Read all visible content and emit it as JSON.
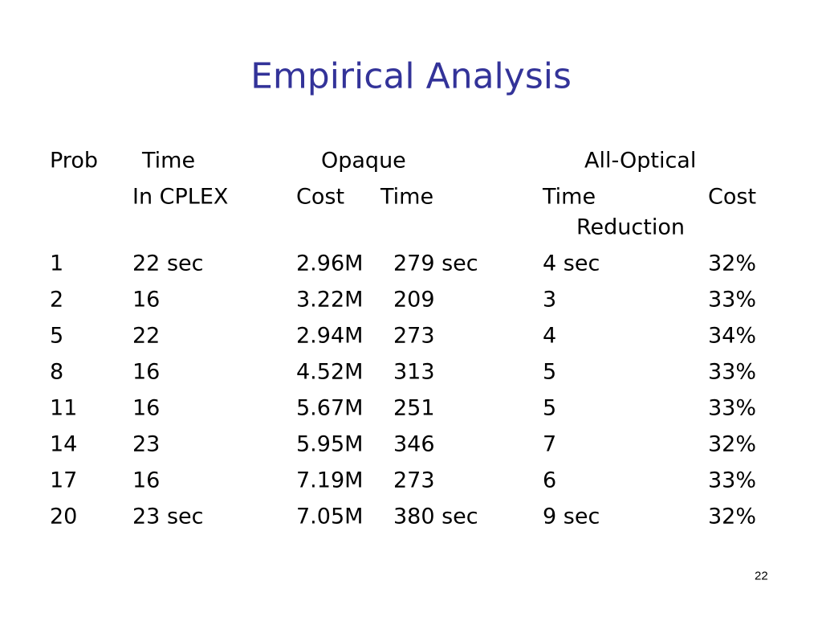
{
  "title": "Empirical Analysis",
  "table": {
    "header1": [
      "Prob",
      "Time",
      "Opaque",
      "All-Optical"
    ],
    "header2": [
      "In CPLEX",
      "Cost",
      "Time",
      "Time",
      "Cost",
      "Reduction"
    ],
    "rows": [
      [
        "1",
        "22 sec",
        "2.96M",
        "279 sec",
        "4 sec",
        "32%"
      ],
      [
        "2",
        "16",
        "3.22M",
        "209",
        "3",
        "33%"
      ],
      [
        "5",
        "22",
        "2.94M",
        "273",
        "4",
        "34%"
      ],
      [
        "8",
        "16",
        "4.52M",
        "313",
        "5",
        "33%"
      ],
      [
        "11",
        "16",
        "5.67M",
        "251",
        "5",
        "33%"
      ],
      [
        "14",
        "23",
        "5.95M",
        "346",
        "7",
        "32%"
      ],
      [
        "17",
        "16",
        "7.19M",
        "273",
        "6",
        "33%"
      ],
      [
        "20",
        "23 sec",
        "7.05M",
        "380 sec",
        "9 sec",
        "32%"
      ]
    ]
  },
  "page_number": "22"
}
